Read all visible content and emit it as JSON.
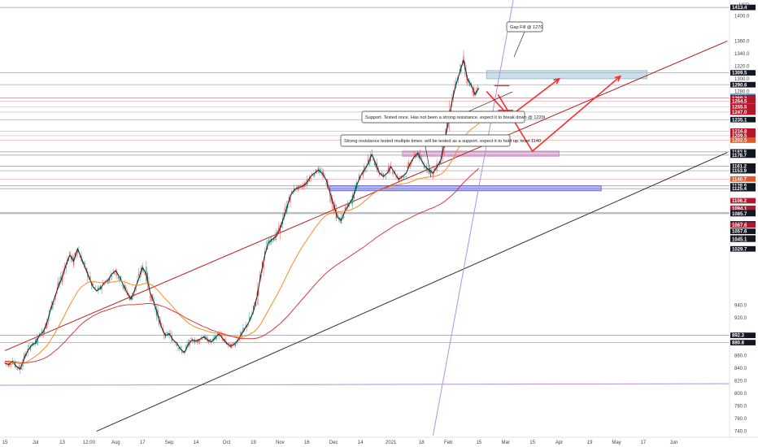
{
  "chart_data": {
    "type": "line",
    "title": "",
    "xlabel": "",
    "ylabel": "",
    "ylim": [
      733,
      1420
    ],
    "grid": false,
    "y_axis_side": "right",
    "x_ticks": [
      "15",
      "Jul",
      "13",
      "12:00",
      "Aug",
      "17",
      "Sep",
      "14",
      "Oct",
      "19",
      "Nov",
      "16",
      "Dec",
      "14",
      "2021",
      "18",
      "Feb",
      "15",
      "Mar",
      "15",
      "Apr",
      "19",
      "May",
      "17",
      "Jun"
    ],
    "x_tick_bars": [
      0,
      8,
      15,
      22,
      29,
      36,
      43,
      50,
      58,
      65,
      72,
      79,
      86,
      93,
      101,
      109,
      116,
      124,
      131,
      138,
      145,
      153,
      160,
      167,
      175
    ],
    "y_ticks": [
      {
        "label": "1400.0",
        "value": 1400,
        "style": "plain"
      },
      {
        "label": "1360.0",
        "value": 1360,
        "style": "plain"
      },
      {
        "label": "1340.0",
        "value": 1340,
        "style": "plain"
      },
      {
        "label": "1320.0",
        "value": 1320,
        "style": "plain"
      },
      {
        "label": "1300.0",
        "value": 1300,
        "style": "plain"
      },
      {
        "label": "1280.0",
        "value": 1280,
        "style": "plain"
      },
      {
        "label": "940.0",
        "value": 940,
        "style": "plain"
      },
      {
        "label": "920.0",
        "value": 920,
        "style": "plain"
      },
      {
        "label": "860.0",
        "value": 860,
        "style": "plain"
      },
      {
        "label": "840.0",
        "value": 840,
        "style": "plain"
      },
      {
        "label": "820.0",
        "value": 820,
        "style": "plain"
      },
      {
        "label": "800.0",
        "value": 800,
        "style": "plain"
      },
      {
        "label": "780.0",
        "value": 780,
        "style": "plain"
      },
      {
        "label": "760.0",
        "value": 760,
        "style": "plain"
      },
      {
        "label": "740.0",
        "value": 740,
        "style": "plain"
      }
    ],
    "price_tags": [
      {
        "label": "1413.4",
        "value": 1413.4,
        "bg": "#131722",
        "fg": "#ffffff"
      },
      {
        "label": "1309.5",
        "value": 1309.5,
        "bg": "#131722",
        "fg": "#ffffff"
      },
      {
        "label": "1290.6",
        "value": 1290.6,
        "bg": "#131722",
        "fg": "#ffffff"
      },
      {
        "label": "1271.9",
        "value": 1271.9,
        "bg": "#4a8fd0",
        "fg": "#ffffff"
      },
      {
        "label": "1269.6",
        "value": 1269.6,
        "bg": "#131722",
        "fg": "#ffffff"
      },
      {
        "label": "1269.3",
        "value": 1269.3,
        "bg": "#b2182b",
        "fg": "#ffffff"
      },
      {
        "label": "1264.5",
        "value": 1264.5,
        "bg": "#b2182b",
        "fg": "#ffffff"
      },
      {
        "label": "1255.5",
        "value": 1255.5,
        "bg": "#b2182b",
        "fg": "#ffffff"
      },
      {
        "label": "1247.0",
        "value": 1247.0,
        "bg": "#b2182b",
        "fg": "#ffffff"
      },
      {
        "label": "1235.1",
        "value": 1235.1,
        "bg": "#131722",
        "fg": "#ffffff"
      },
      {
        "label": "1216.8",
        "value": 1216.8,
        "bg": "#b2182b",
        "fg": "#ffffff"
      },
      {
        "label": "1209.5",
        "value": 1209.5,
        "bg": "#b2182b",
        "fg": "#ffffff"
      },
      {
        "label": "1202.5",
        "value": 1202.5,
        "bg": "#e05a2a",
        "fg": "#ffffff"
      },
      {
        "label": "1183.8",
        "value": 1183.8,
        "bg": "#131722",
        "fg": "#ffffff"
      },
      {
        "label": "1178.7",
        "value": 1178.7,
        "bg": "#131722",
        "fg": "#ffffff"
      },
      {
        "label": "1161.2",
        "value": 1161.2,
        "bg": "#131722",
        "fg": "#ffffff"
      },
      {
        "label": "1153.9",
        "value": 1153.9,
        "bg": "#131722",
        "fg": "#ffffff"
      },
      {
        "label": "1140.7",
        "value": 1140.7,
        "bg": "#e05a2a",
        "fg": "#ffffff"
      },
      {
        "label": "1129.9",
        "value": 1129.9,
        "bg": "#131722",
        "fg": "#ffffff"
      },
      {
        "label": "1125.4",
        "value": 1125.4,
        "bg": "#131722",
        "fg": "#ffffff"
      },
      {
        "label": "1106.2",
        "value": 1106.2,
        "bg": "#b2182b",
        "fg": "#ffffff"
      },
      {
        "label": "1094.1",
        "value": 1094.1,
        "bg": "#b2182b",
        "fg": "#ffffff"
      },
      {
        "label": "1087.2",
        "value": 1087.2,
        "bg": "#131722",
        "fg": "#ffffff"
      },
      {
        "label": "1085.7",
        "value": 1085.7,
        "bg": "#131722",
        "fg": "#ffffff"
      },
      {
        "label": "1069.4",
        "value": 1069.4,
        "bg": "#131722",
        "fg": "#ffffff"
      },
      {
        "label": "1067.6",
        "value": 1067.6,
        "bg": "#b2182b",
        "fg": "#ffffff"
      },
      {
        "label": "1057.6",
        "value": 1057.6,
        "bg": "#131722",
        "fg": "#ffffff"
      },
      {
        "label": "1047.0",
        "value": 1047.0,
        "bg": "#131722",
        "fg": "#ffffff"
      },
      {
        "label": "1045.1",
        "value": 1045.1,
        "bg": "#131722",
        "fg": "#ffffff"
      },
      {
        "label": "1029.7",
        "value": 1029.7,
        "bg": "#131722",
        "fg": "#ffffff"
      },
      {
        "label": "892.3",
        "value": 892.3,
        "bg": "#131722",
        "fg": "#ffffff"
      },
      {
        "label": "880.8",
        "value": 880.8,
        "bg": "#131722",
        "fg": "#ffffff"
      }
    ],
    "horizontal_levels": [
      1413.4,
      1309.5,
      1290.6,
      1269.6,
      1235.1,
      1183.8,
      1178.7,
      1161.2,
      1153.9,
      1129.9,
      1125.4,
      1087.2,
      1085.7,
      892.3,
      880.8
    ],
    "horizontal_levels_red": [
      1269.3,
      1264.5,
      1255.5,
      1247.0,
      1216.8,
      1209.5,
      1202.5,
      1140.7
    ],
    "purple_level": 813,
    "zones": [
      {
        "name": "gap-fill-zone",
        "start_bar": 126,
        "end_bar": 168,
        "top": 1313,
        "bottom": 1300,
        "color": "#8fb8cc"
      },
      {
        "name": "resistance-zone",
        "start_bar": 104,
        "end_bar": 145,
        "top": 1185,
        "bottom": 1177,
        "color": "#c77dbb"
      },
      {
        "name": "support-zone",
        "start_bar": 85,
        "end_bar": 156,
        "top": 1130,
        "bottom": 1122,
        "color": "#5a5ad6"
      }
    ],
    "trendlines": [
      {
        "name": "upper-channel",
        "color": "#b22222",
        "from": {
          "bar": 0,
          "value": 868
        },
        "to": {
          "bar": 189,
          "value": 1360
        }
      },
      {
        "name": "lower-channel",
        "color": "#333333",
        "from": {
          "bar": 24,
          "value": 740
        },
        "to": {
          "bar": 189,
          "value": 1183
        }
      },
      {
        "name": "vertical-projection",
        "color": "#b58fe0",
        "from": {
          "bar": 112,
          "value": 733
        },
        "to": {
          "bar": 133,
          "value": 1425
        }
      }
    ],
    "projection_paths": [
      {
        "name": "projection-a",
        "color": "#ff2a2a",
        "points": [
          [
            126,
            1280
          ],
          [
            132,
            1240
          ],
          [
            145,
            1300
          ]
        ]
      },
      {
        "name": "projection-b",
        "color": "#ff2a2a",
        "points": [
          [
            129,
            1275
          ],
          [
            138,
            1185
          ],
          [
            161,
            1304
          ]
        ]
      }
    ],
    "small_marks": [
      {
        "name": "red-tick-a",
        "bar": 128,
        "value": 1289,
        "width": 4
      },
      {
        "name": "red-tick-b",
        "bar": 129,
        "value": 1250,
        "width": 4
      }
    ],
    "callouts": [
      {
        "name": "gap-fill-callout",
        "text": "Gap Fill @ 1270",
        "anchor_bar": 134,
        "anchor_value": 1330
      },
      {
        "name": "support-callout",
        "text": "Support. Tested once. Has not been a strong resistance. expect it to break down @ 1220i",
        "anchor_bar": 130,
        "anchor_value": 1255
      },
      {
        "name": "resistance-callout",
        "text": "Strong resistance tested multiple times. will be tested as a support. expect it to hold up. level 1140",
        "anchor_bar": 110,
        "anchor_value": 1200
      }
    ],
    "series": [
      {
        "name": "",
        "color": "#2b2b2b",
        "values": [
          848,
          846,
          851,
          843,
          839,
          855,
          868,
          877,
          880,
          892,
          898,
          912,
          934,
          952,
          970,
          985,
          1005,
          1020,
          1010,
          1030,
          1015,
          1000,
          985,
          970,
          963,
          967,
          976,
          980,
          990,
          995,
          985,
          972,
          960,
          950,
          965,
          982,
          1000,
          990,
          960,
          945,
          925,
          905,
          892,
          895,
          885,
          880,
          870,
          865,
          878,
          885,
          883,
          886,
          890,
          885,
          882,
          888,
          895,
          887,
          880,
          875,
          878,
          885,
          895,
          905,
          915,
          930,
          955,
          990,
          1020,
          1040,
          1045,
          1050,
          1062,
          1080,
          1100,
          1118,
          1125,
          1127,
          1130,
          1135,
          1145,
          1150,
          1155,
          1150,
          1140,
          1120,
          1100,
          1080,
          1075,
          1090,
          1100,
          1110,
          1130,
          1145,
          1155,
          1165,
          1180,
          1165,
          1150,
          1145,
          1150,
          1160,
          1150,
          1140,
          1145,
          1150,
          1165,
          1175,
          1182,
          1170,
          1160,
          1155,
          1150,
          1160,
          1170,
          1200,
          1230,
          1265,
          1290,
          1310,
          1330,
          1300,
          1290,
          1275,
          1285
        ]
      },
      {
        "name": "",
        "color": "#ff7f0e",
        "values": [
          850,
          849,
          849,
          848,
          847,
          848,
          851,
          855,
          859,
          864,
          870,
          876,
          885,
          895,
          906,
          917,
          929,
          941,
          951,
          962,
          969,
          974,
          977,
          978,
          977,
          976,
          976,
          976,
          977,
          978,
          979,
          978,
          976,
          973,
          972,
          972,
          974,
          975,
          974,
          970,
          964,
          957,
          950,
          944,
          937,
          930,
          923,
          917,
          912,
          908,
          905,
          903,
          901,
          899,
          897,
          896,
          895,
          894,
          892,
          891,
          890,
          890,
          890,
          891,
          894,
          897,
          903,
          911,
          922,
          933,
          944,
          955,
          966,
          978,
          991,
          1003,
          1014,
          1025,
          1035,
          1044,
          1053,
          1062,
          1070,
          1077,
          1083,
          1086,
          1088,
          1089,
          1089,
          1090,
          1091,
          1093,
          1096,
          1100,
          1105,
          1110,
          1116,
          1120,
          1123,
          1125,
          1127,
          1130,
          1131,
          1132,
          1133,
          1134,
          1136,
          1138,
          1141,
          1142,
          1143,
          1144,
          1144,
          1146,
          1148,
          1153,
          1161,
          1171,
          1182,
          1194,
          1206,
          1214,
          1220,
          1224,
          1229
        ]
      },
      {
        "name": "",
        "color": "#d62728",
        "values": [
          851,
          851,
          850,
          850,
          849,
          849,
          849,
          850,
          851,
          853,
          855,
          858,
          862,
          867,
          872,
          878,
          884,
          891,
          897,
          904,
          910,
          915,
          919,
          923,
          926,
          929,
          931,
          933,
          935,
          937,
          939,
          940,
          941,
          941,
          941,
          942,
          942,
          943,
          943,
          942,
          941,
          939,
          937,
          934,
          931,
          928,
          925,
          921,
          918,
          915,
          912,
          909,
          906,
          904,
          901,
          899,
          897,
          895,
          893,
          891,
          890,
          888,
          887,
          887,
          887,
          887,
          888,
          890,
          893,
          897,
          901,
          906,
          911,
          917,
          923,
          930,
          937,
          944,
          951,
          958,
          965,
          972,
          979,
          985,
          991,
          996,
          1001,
          1005,
          1009,
          1013,
          1017,
          1021,
          1025,
          1029,
          1033,
          1038,
          1042,
          1047,
          1051,
          1055,
          1059,
          1063,
          1067,
          1070,
          1073,
          1076,
          1079,
          1082,
          1085,
          1088,
          1090,
          1093,
          1095,
          1098,
          1101,
          1105,
          1110,
          1115,
          1121,
          1128,
          1135,
          1141,
          1147,
          1152,
          1158
        ]
      }
    ]
  }
}
